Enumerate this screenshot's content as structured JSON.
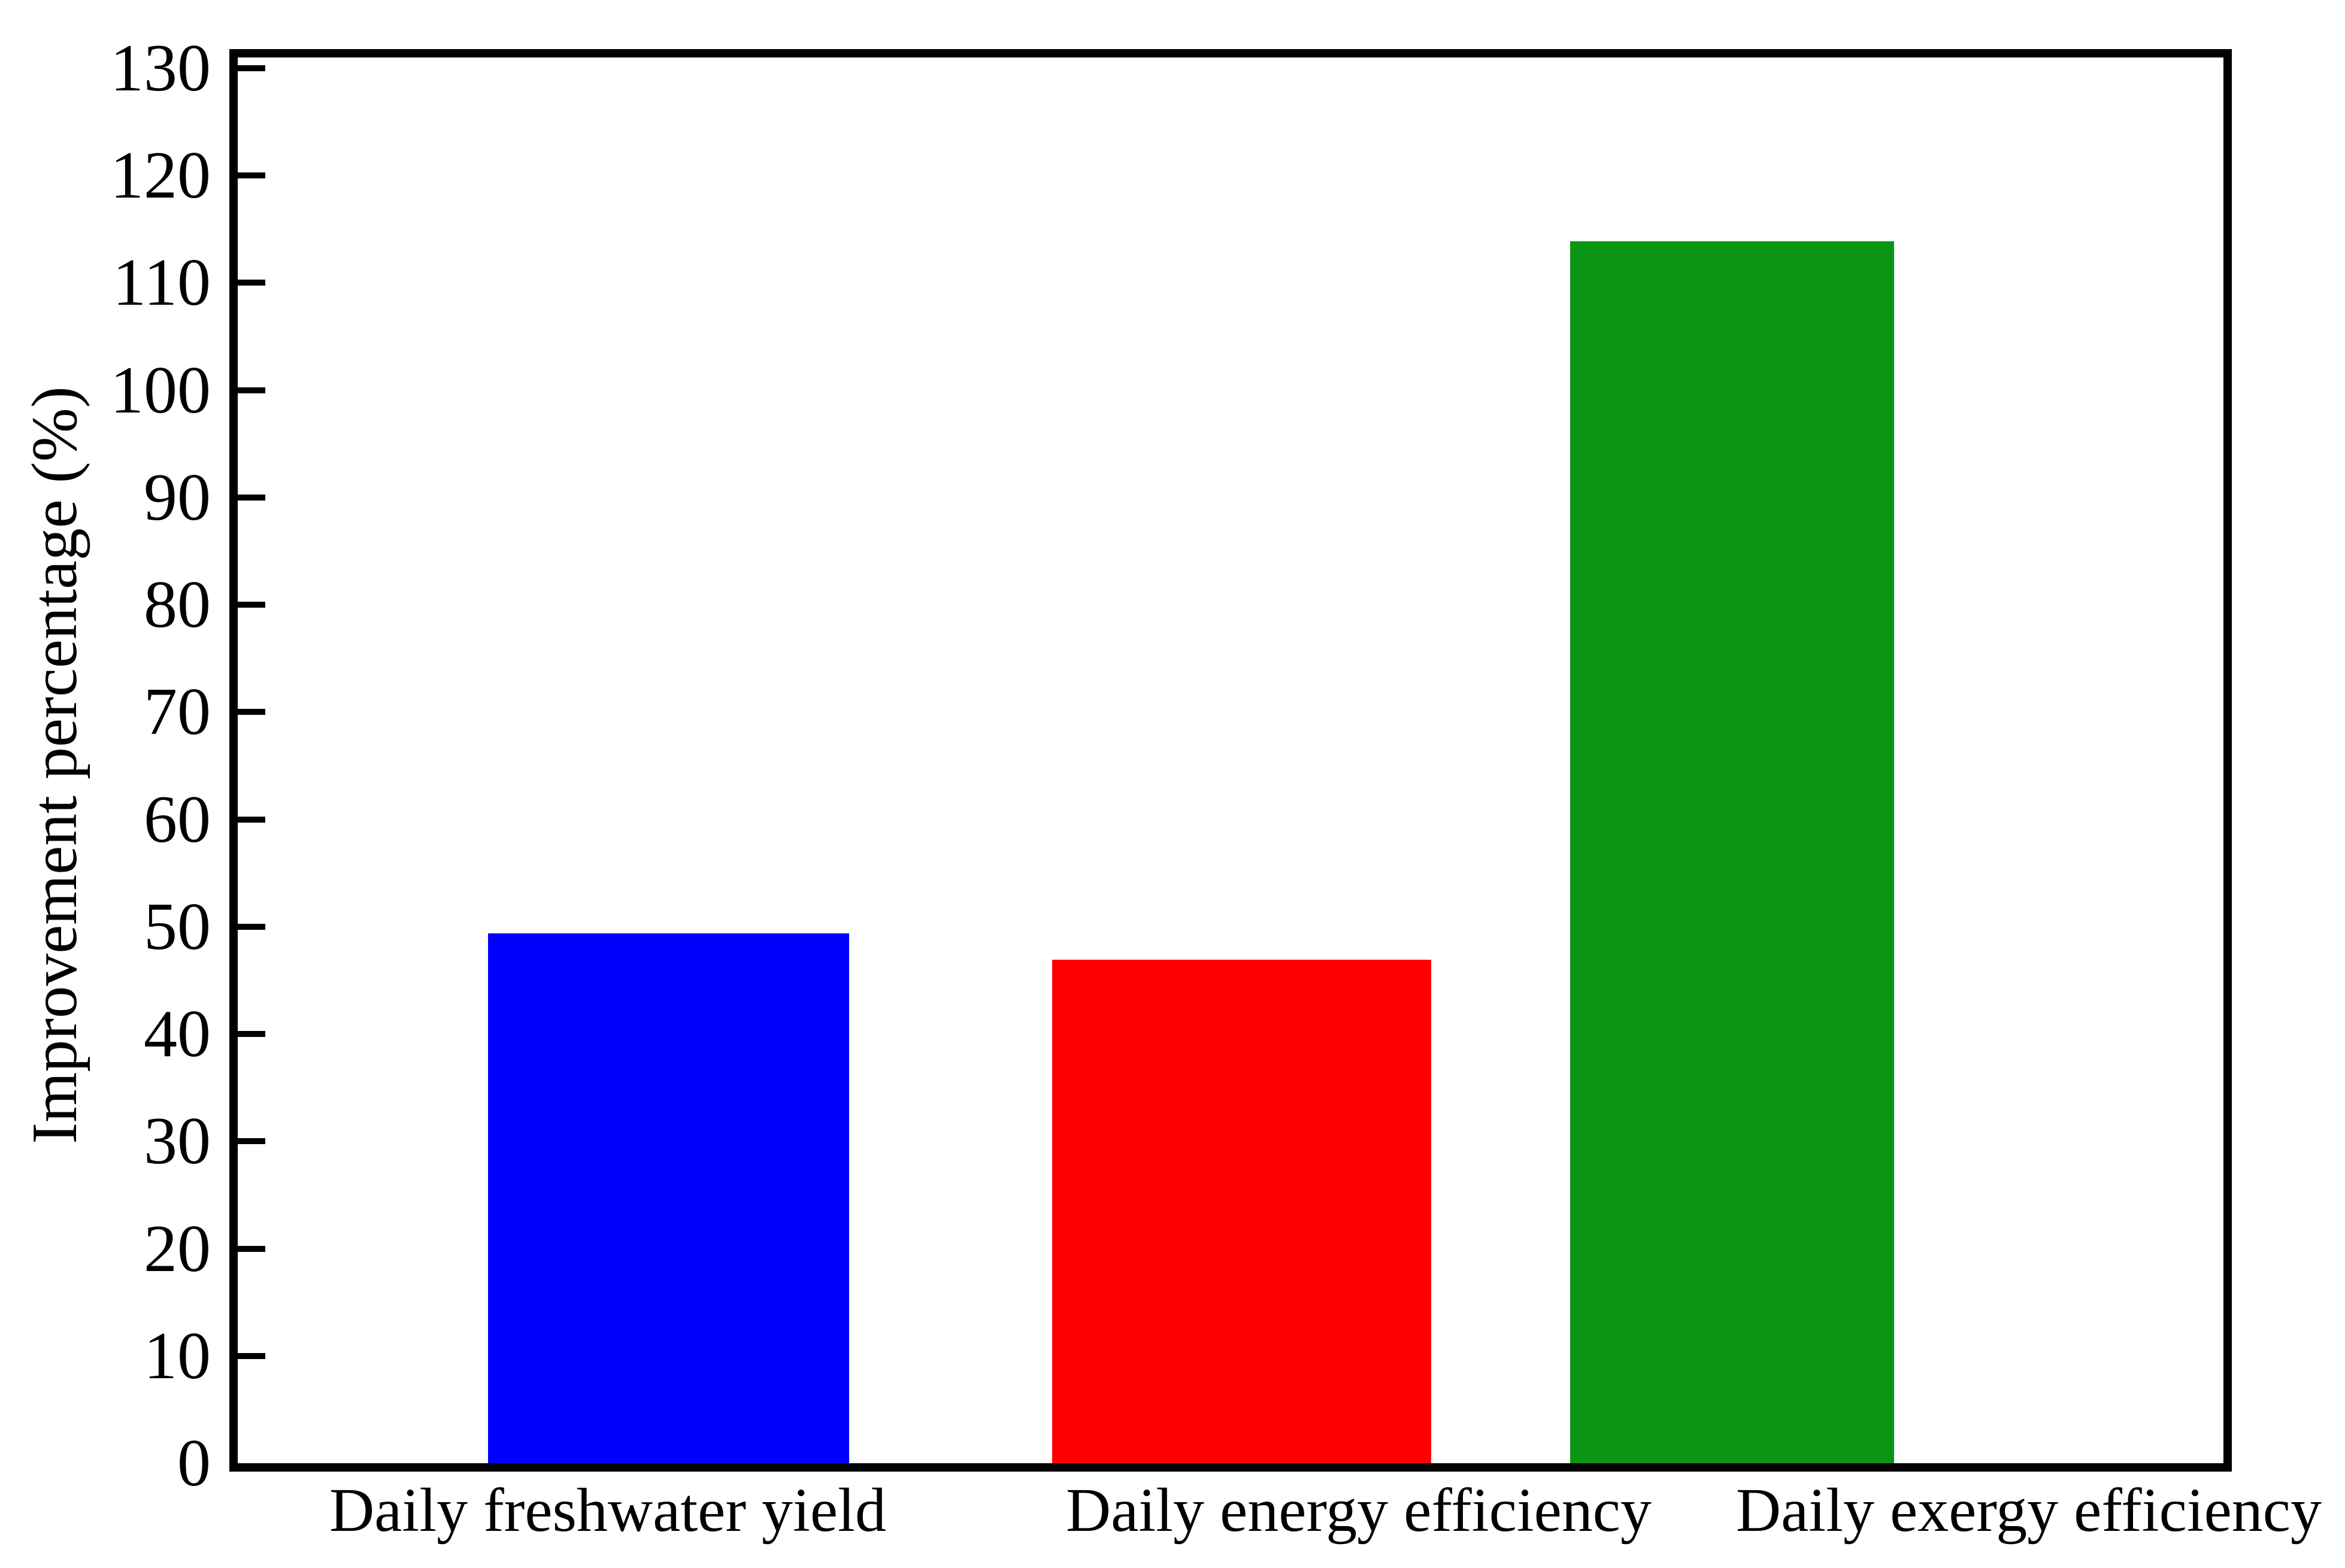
{
  "figure": {
    "background": "#ffffff",
    "frame_color": "#000000"
  },
  "chart_data": {
    "type": "bar",
    "title": "",
    "categories": [
      "Daily freshwater yield",
      "Daily energy efficiency",
      "Daily exergy efficiency"
    ],
    "values": [
      49.4,
      46.9,
      113.9
    ],
    "bar_colors": [
      "#0000fe",
      "#fe0000",
      "#0a9614"
    ],
    "xlabel": "",
    "ylabel": "Improvement percentage (%)",
    "ylim": [
      0,
      130
    ],
    "ytick_step": 10,
    "yticks": [
      0,
      10,
      20,
      30,
      40,
      50,
      60,
      70,
      80,
      90,
      100,
      110,
      120,
      130
    ],
    "grid": false,
    "legend": false,
    "axis_color": "#000000",
    "tick_style": "inside"
  }
}
